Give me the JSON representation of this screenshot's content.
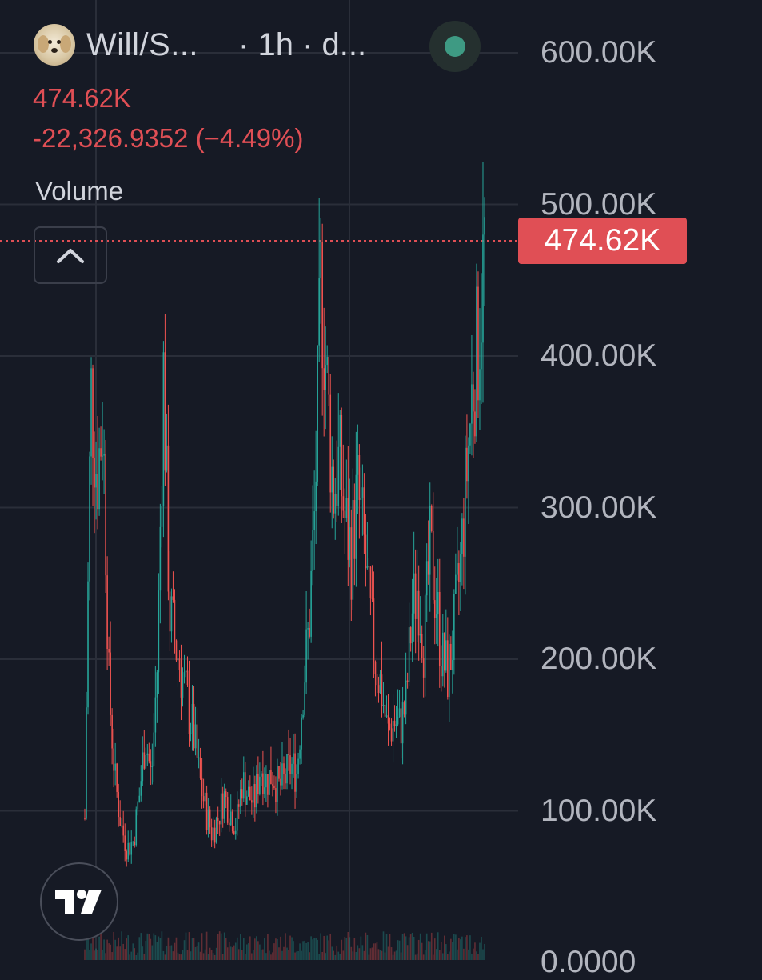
{
  "header": {
    "symbol": "Will/S...",
    "interval": "· 1h · d...",
    "status_color": "#3e9a83"
  },
  "legend": {
    "price": "474.62K",
    "change": "-22,326.9352 (−4.49%)",
    "volume_label": "Volume"
  },
  "icons": {
    "avatar": "puppy-avatar-icon",
    "collapse": "chevron-up-icon",
    "logo": "tradingview-logo-icon"
  },
  "colors": {
    "background": "#161a25",
    "up": "#26a69a",
    "down": "#ef5350",
    "grid": "#2a2e39",
    "price_tag": "#e04f55"
  },
  "chart_data": {
    "type": "candlestick",
    "interval": "1h",
    "ylim": [
      0,
      630000
    ],
    "y_ticks": [
      {
        "value": 0,
        "label": "0.0000"
      },
      {
        "value": 100000,
        "label": "100.00K"
      },
      {
        "value": 200000,
        "label": "200.00K"
      },
      {
        "value": 300000,
        "label": "300.00K"
      },
      {
        "value": 400000,
        "label": "400.00K"
      },
      {
        "value": 500000,
        "label": "500.00K"
      },
      {
        "value": 600000,
        "label": "600.00K"
      }
    ],
    "last_price": 474620,
    "last_price_label": "474.62K",
    "close_series": [
      95000,
      380000,
      320000,
      360000,
      180000,
      120000,
      90000,
      75000,
      80000,
      110000,
      150000,
      120000,
      200000,
      390000,
      230000,
      210000,
      190000,
      170000,
      150000,
      120000,
      100000,
      85000,
      95000,
      110000,
      100000,
      90000,
      120000,
      110000,
      105000,
      130000,
      120000,
      125000,
      115000,
      120000,
      130000,
      125000,
      180000,
      220000,
      300000,
      450000,
      380000,
      310000,
      330000,
      290000,
      270000,
      310000,
      280000,
      230000,
      200000,
      180000,
      150000,
      160000,
      155000,
      170000,
      230000,
      250000,
      210000,
      270000,
      240000,
      200000,
      190000,
      220000,
      260000,
      320000,
      380000,
      410000,
      474620
    ]
  }
}
